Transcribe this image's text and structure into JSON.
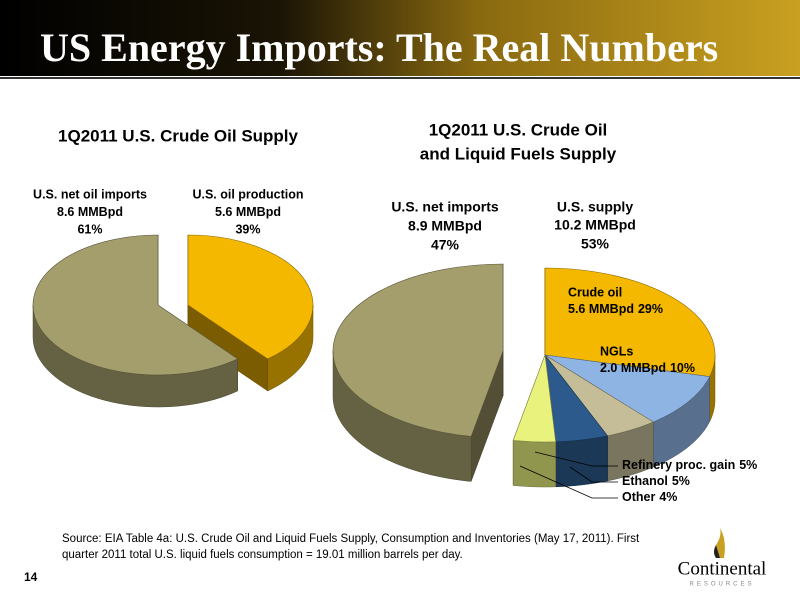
{
  "slide": {
    "title": "US Energy Imports: The Real Numbers",
    "source_line1": "Source: EIA Table 4a: U.S. Crude Oil and Liquid Fuels Supply, Consumption and Inventories (May 17, 2011). First",
    "source_line2": "quarter 2011 total U.S. liquid fuels consumption = 19.01 million barrels per day.",
    "page_number": "14",
    "logo": "Continental",
    "logo_sub": "RESOURCES"
  },
  "chart_data": [
    {
      "type": "pie",
      "title": "1Q2011 U.S. Crude Oil Supply",
      "categories": [
        "U.S. net oil imports",
        "U.S. oil production"
      ],
      "amounts": [
        "8.6 MMBpd",
        "5.6 MMBpd"
      ],
      "values": [
        61,
        39
      ],
      "value_labels": [
        "61%",
        "39%"
      ],
      "colors": [
        "#a39e6c",
        "#f5b800"
      ],
      "start_index": 1
    },
    {
      "type": "pie",
      "title_line1": "1Q2011 U.S. Crude Oil",
      "title_line2": "and Liquid Fuels Supply",
      "group": {
        "name": "U.S. supply",
        "amount": "10.2 MMBpd",
        "value": 53,
        "value_label": "53%"
      },
      "categories": [
        "U.S. net imports",
        "Crude oil",
        "NGLs",
        "Refinery proc. gain",
        "Ethanol",
        "Other"
      ],
      "amounts": [
        "8.9 MMBpd",
        "5.6 MMBpd",
        "2.0 MMBpd",
        null,
        null,
        null
      ],
      "values": [
        47,
        29,
        10,
        5,
        5,
        4
      ],
      "value_labels": [
        "47%",
        "29%",
        "10%",
        "5%",
        "5%",
        "4%"
      ],
      "colors": [
        "#a39e6c",
        "#f5b800",
        "#8eb4e3",
        "#c4bd97",
        "#2c5a8c",
        "#e8f27c"
      ],
      "start_index": 1
    }
  ]
}
